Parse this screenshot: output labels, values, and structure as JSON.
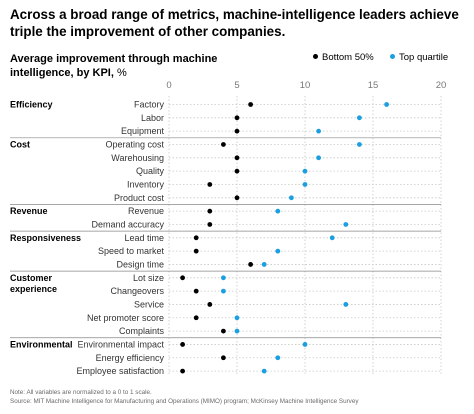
{
  "headline": "Across a broad range of metrics, machine-intelligence leaders achieve triple the improvement of other companies.",
  "colors": {
    "bottom_50": "#000000",
    "top_quartile": "#1a9fe0",
    "grid": "#c8c8c8",
    "divider": "#888888",
    "footer_text": "#6a6a6a"
  },
  "chart_data": {
    "type": "scatter",
    "title": "Average improvement through machine intelligence, by KPI,",
    "unit": "%",
    "xlim": [
      0,
      20
    ],
    "x_ticks": [
      "0",
      "5",
      "10",
      "15",
      "20"
    ],
    "grid": "vertical dotted",
    "legend_position": "top-right",
    "series": [
      {
        "name": "Bottom 50%",
        "color": "#000000"
      },
      {
        "name": "Top quartile",
        "color": "#1a9fe0"
      }
    ],
    "groups": [
      {
        "name": "Efficiency",
        "items": [
          {
            "kpi": "Factory",
            "bottom_50": 6,
            "top_quartile": 16
          },
          {
            "kpi": "Labor",
            "bottom_50": 5,
            "top_quartile": 14
          },
          {
            "kpi": "Equipment",
            "bottom_50": 5,
            "top_quartile": 11
          }
        ]
      },
      {
        "name": "Cost",
        "items": [
          {
            "kpi": "Operating cost",
            "bottom_50": 4,
            "top_quartile": 14
          },
          {
            "kpi": "Warehousing",
            "bottom_50": 5,
            "top_quartile": 11
          },
          {
            "kpi": "Quality",
            "bottom_50": 5,
            "top_quartile": 10
          },
          {
            "kpi": "Inventory",
            "bottom_50": 3,
            "top_quartile": 10
          },
          {
            "kpi": "Product cost",
            "bottom_50": 5,
            "top_quartile": 9
          }
        ]
      },
      {
        "name": "Revenue",
        "items": [
          {
            "kpi": "Revenue",
            "bottom_50": 3,
            "top_quartile": 8
          },
          {
            "kpi": "Demand accuracy",
            "bottom_50": 3,
            "top_quartile": 13
          }
        ]
      },
      {
        "name": "Responsiveness",
        "items": [
          {
            "kpi": "Lead time",
            "bottom_50": 2,
            "top_quartile": 12
          },
          {
            "kpi": "Speed to market",
            "bottom_50": 2,
            "top_quartile": 8
          },
          {
            "kpi": "Design time",
            "bottom_50": 6,
            "top_quartile": 7
          }
        ]
      },
      {
        "name": "Customer experience",
        "items": [
          {
            "kpi": "Lot size",
            "bottom_50": 1,
            "top_quartile": 4
          },
          {
            "kpi": "Changeovers",
            "bottom_50": 2,
            "top_quartile": 4
          },
          {
            "kpi": "Service",
            "bottom_50": 3,
            "top_quartile": 13
          },
          {
            "kpi": "Net promoter score",
            "bottom_50": 2,
            "top_quartile": 5
          },
          {
            "kpi": "Complaints",
            "bottom_50": 4,
            "top_quartile": 5
          }
        ]
      },
      {
        "name": "Environmental",
        "items": [
          {
            "kpi": "Environmental impact",
            "bottom_50": 1,
            "top_quartile": 10
          },
          {
            "kpi": "Energy efficiency",
            "bottom_50": 4,
            "top_quartile": 8
          },
          {
            "kpi": "Employee satisfaction",
            "bottom_50": 1,
            "top_quartile": 7
          }
        ]
      }
    ]
  },
  "footer": {
    "note": "Note: All variables are normalized to a 0 to 1 scale.",
    "source": "Source: MIT Machine Intelligence for Manufacturing and Operations (MIMO) program; McKinsey Machine Intelligence Survey"
  }
}
